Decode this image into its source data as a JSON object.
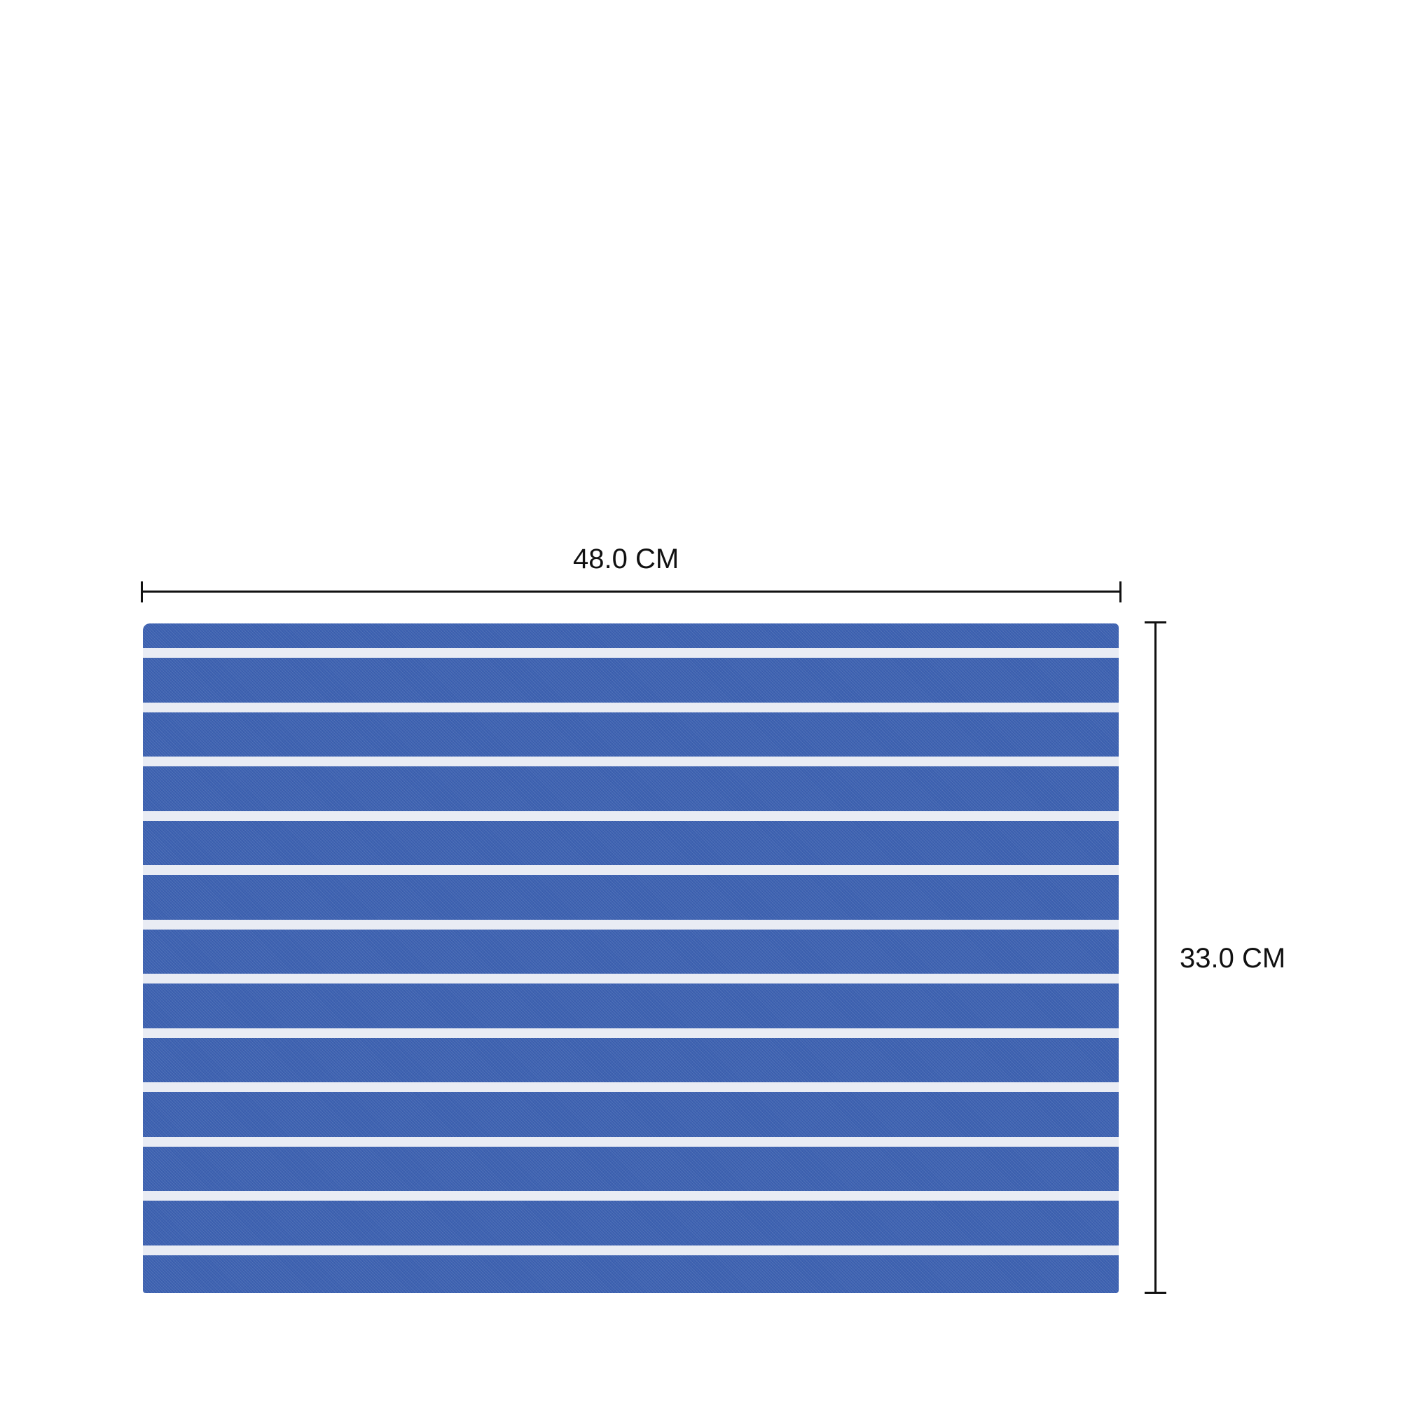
{
  "width_label": "48.0 CM",
  "height_label": "33.0 CM",
  "colors": {
    "fabric": "#3d62b1",
    "stripe": "#e9ecf4",
    "dimension_lines": "#111111"
  }
}
